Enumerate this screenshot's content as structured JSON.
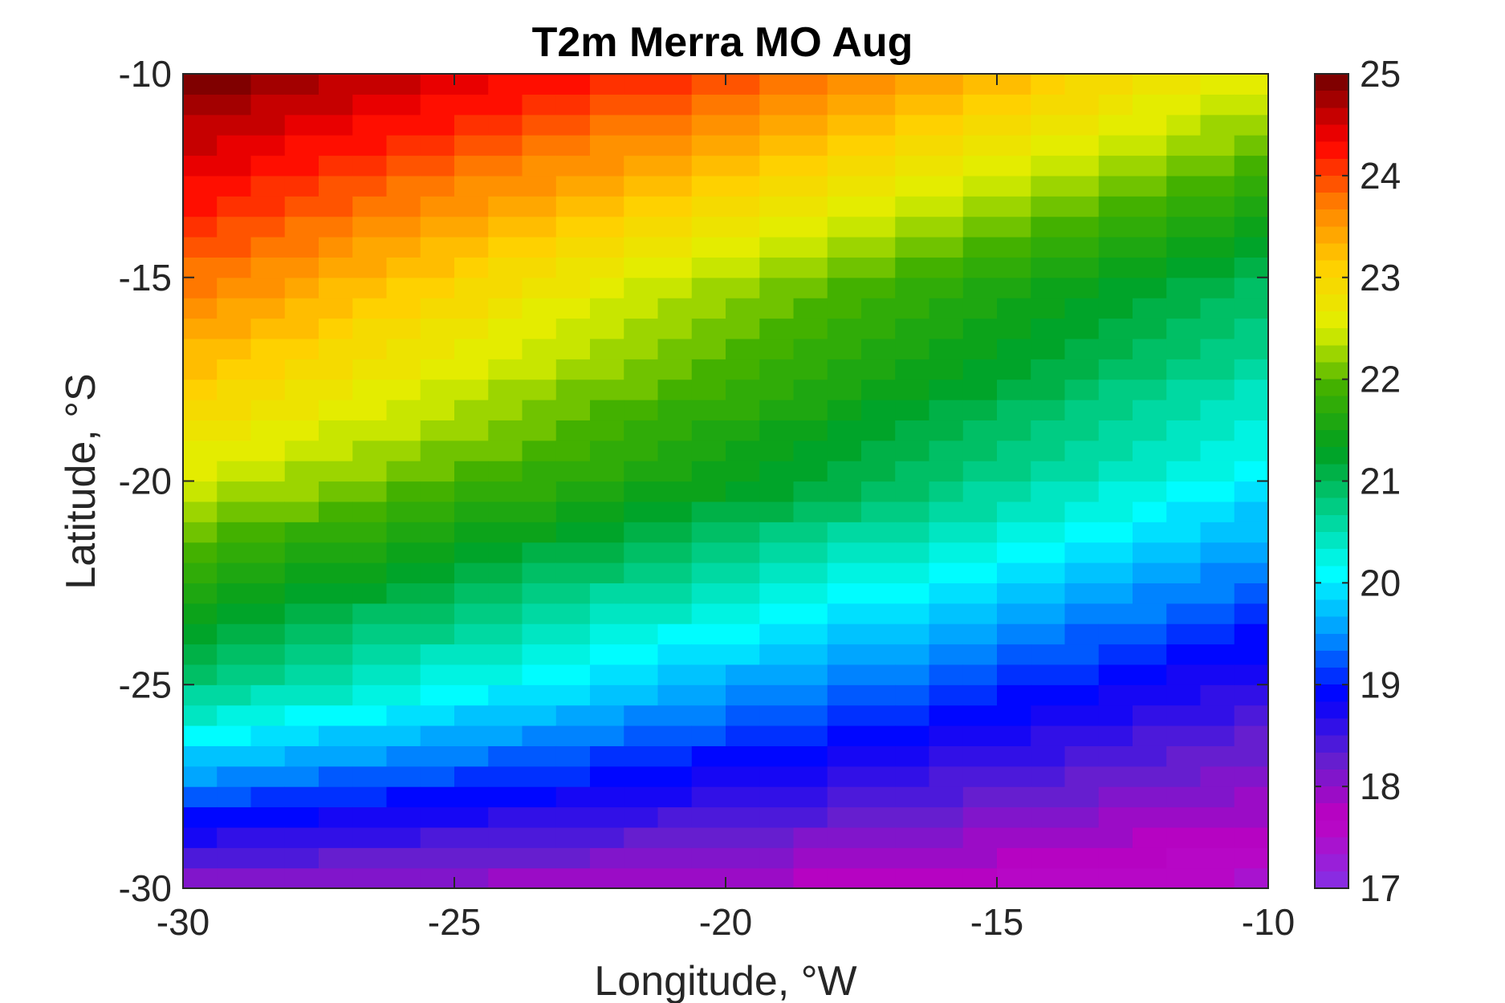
{
  "chart_data": {
    "type": "heatmap",
    "title": "T2m Merra MO Aug",
    "xlabel": "Longitude, °W",
    "ylabel": "Latitude, °S",
    "xlim": [
      -30,
      -10
    ],
    "ylim": [
      -30,
      -10
    ],
    "xticks": [
      -30,
      -25,
      -20,
      -15,
      -10
    ],
    "yticks": [
      -10,
      -15,
      -20,
      -25,
      -30
    ],
    "xtick_labels": [
      "-30",
      "-25",
      "-20",
      "-15",
      "-10"
    ],
    "ytick_labels": [
      "-10",
      "-15",
      "-20",
      "-25",
      "-30"
    ],
    "grid_resolution_deg": [
      0.625,
      0.5
    ],
    "colorbar": {
      "range": [
        17,
        25
      ],
      "ticks": [
        17,
        18,
        19,
        20,
        21,
        22,
        23,
        24,
        25
      ],
      "tick_labels": [
        "17",
        "18",
        "19",
        "20",
        "21",
        "22",
        "23",
        "24",
        "25"
      ],
      "colormap_stops": [
        "#8a2be2",
        "#c000c0",
        "#6020d0",
        "#0000ff",
        "#0096ff",
        "#00ffff",
        "#00d08c",
        "#00a020",
        "#40b000",
        "#e0f000",
        "#ffd000",
        "#ff8000",
        "#ff0000",
        "#800000"
      ],
      "placement": "right"
    },
    "value_model": {
      "description": "T at (lon, lat) along the gradient: south-west cold to north-west warm band; approximate readings",
      "samples": [
        {
          "lon": -30,
          "lat": -10,
          "value": 25.0
        },
        {
          "lon": -20,
          "lat": -10,
          "value": 24.0
        },
        {
          "lon": -10,
          "lat": -10,
          "value": 22.6
        },
        {
          "lon": -30,
          "lat": -15,
          "value": 23.8
        },
        {
          "lon": -20,
          "lat": -15,
          "value": 22.3
        },
        {
          "lon": -10,
          "lat": -15,
          "value": 21.0
        },
        {
          "lon": -30,
          "lat": -20,
          "value": 22.5
        },
        {
          "lon": -20,
          "lat": -20,
          "value": 21.4
        },
        {
          "lon": -10,
          "lat": -20,
          "value": 20.0
        },
        {
          "lon": -30,
          "lat": -25,
          "value": 20.8
        },
        {
          "lon": -20,
          "lat": -25,
          "value": 19.6
        },
        {
          "lon": -10,
          "lat": -25,
          "value": 18.6
        },
        {
          "lon": -30,
          "lat": -30,
          "value": 18.0
        },
        {
          "lon": -20,
          "lat": -30,
          "value": 17.8
        },
        {
          "lon": -10,
          "lat": -30,
          "value": 17.4
        }
      ]
    }
  }
}
